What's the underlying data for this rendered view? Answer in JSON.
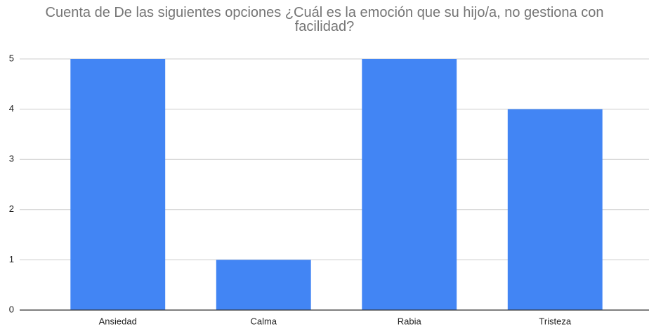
{
  "chart_data": {
    "type": "bar",
    "title": "Cuenta de De las siguientes opciones ¿Cuál es la emoción que su hijo/a, no gestiona con facilidad?",
    "categories": [
      "Ansiedad",
      "Calma",
      "Rabia",
      "Tristeza"
    ],
    "values": [
      5,
      1,
      5,
      4
    ],
    "color": "#4285f4",
    "ylim": [
      0,
      5
    ],
    "yticks": [
      0,
      1,
      2,
      3,
      4,
      5
    ],
    "grid": true
  }
}
